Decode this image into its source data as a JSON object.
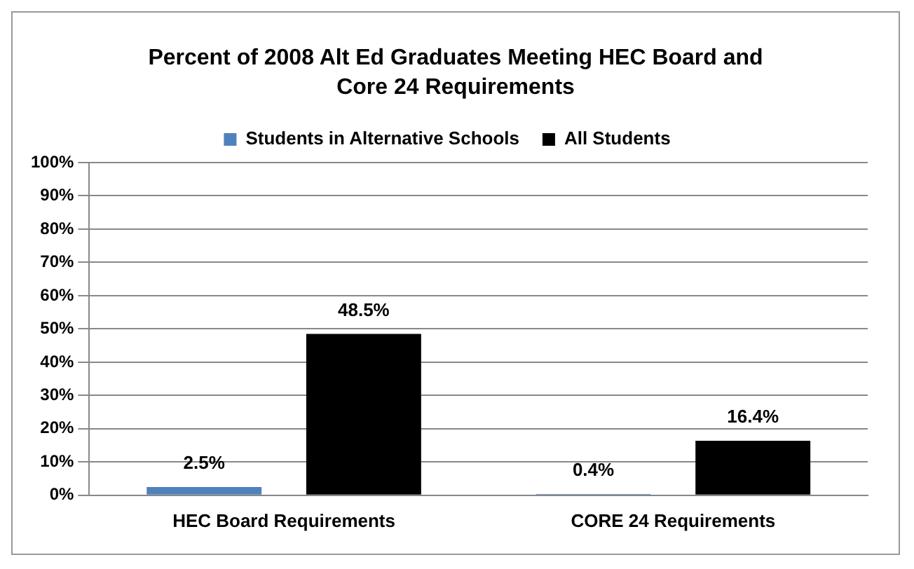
{
  "chart_data": {
    "type": "bar",
    "title": "Percent of  2008 Alt Ed Graduates Meeting HEC Board and Core 24 Requirements",
    "categories": [
      "HEC Board Requirements",
      "CORE 24 Requirements"
    ],
    "series": [
      {
        "name": "Students in Alternative Schools",
        "color": "#4f81bd",
        "values": [
          2.5,
          0.4
        ],
        "value_labels": [
          "2.5%",
          "0.4%"
        ]
      },
      {
        "name": "All Students",
        "color": "#000000",
        "values": [
          48.5,
          16.4
        ],
        "value_labels": [
          "48.5%",
          "16.4%"
        ]
      }
    ],
    "ylim": [
      0,
      100
    ],
    "yticks": [
      {
        "value": 0,
        "label": "0%"
      },
      {
        "value": 10,
        "label": "10%"
      },
      {
        "value": 20,
        "label": "20%"
      },
      {
        "value": 30,
        "label": "30%"
      },
      {
        "value": 40,
        "label": "40%"
      },
      {
        "value": 50,
        "label": "50%"
      },
      {
        "value": 60,
        "label": "60%"
      },
      {
        "value": 70,
        "label": "70%"
      },
      {
        "value": 80,
        "label": "80%"
      },
      {
        "value": 90,
        "label": "90%"
      },
      {
        "value": 100,
        "label": "100%"
      }
    ],
    "grid": "y",
    "legend": "top"
  }
}
